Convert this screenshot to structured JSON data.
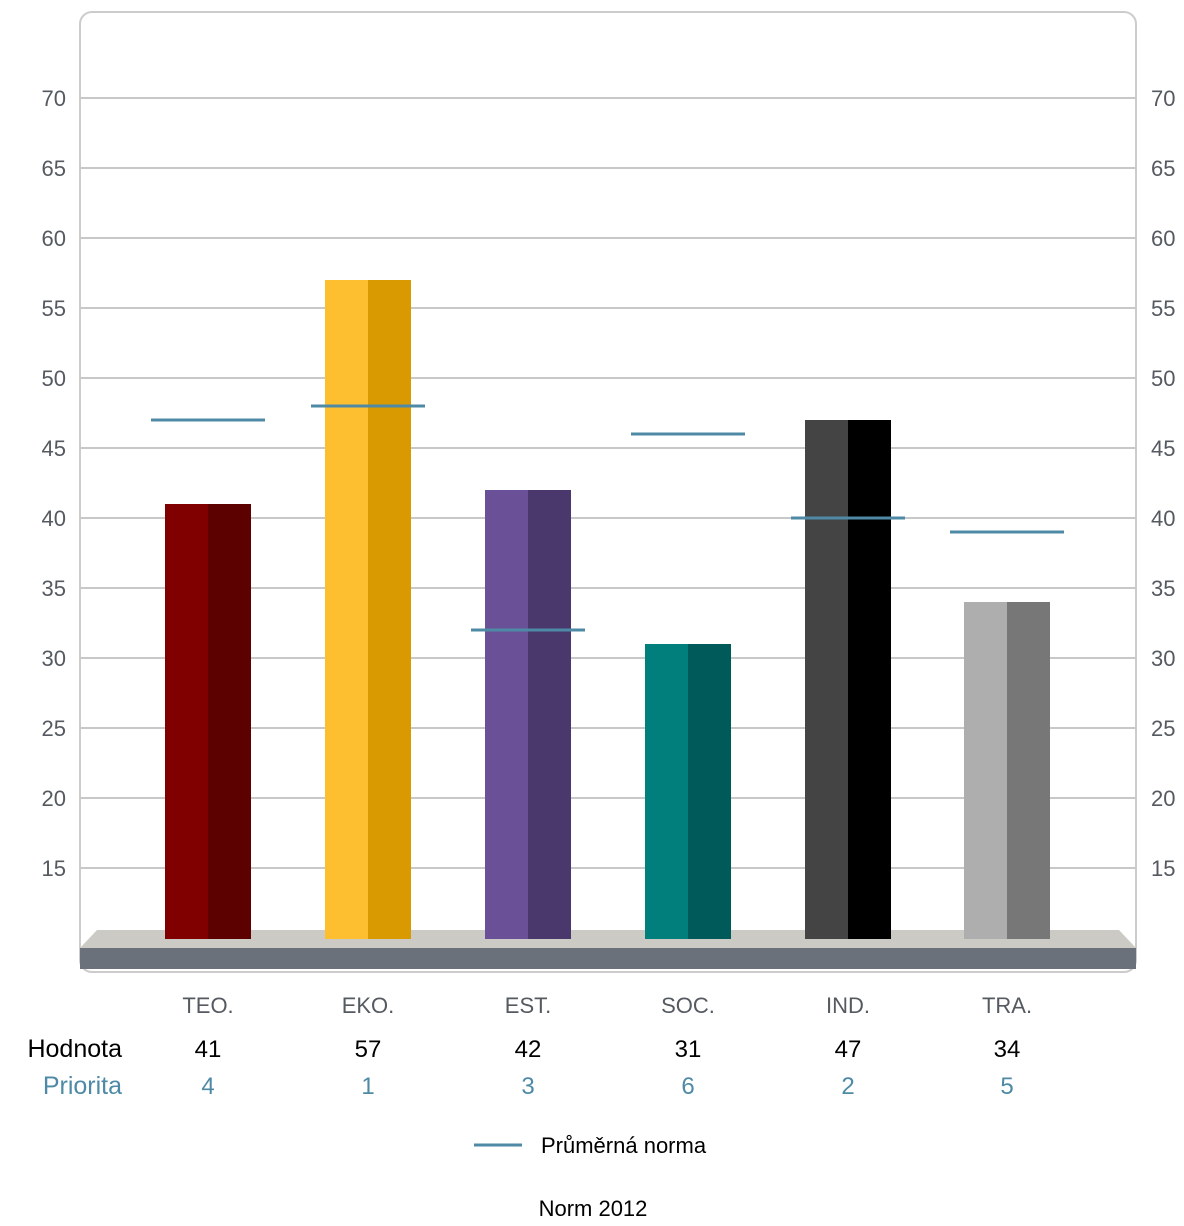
{
  "chart_data": {
    "type": "bar",
    "categories": [
      "TEO.",
      "EKO.",
      "EST.",
      "SOC.",
      "IND.",
      "TRA."
    ],
    "series": [
      {
        "values": [
          41,
          57,
          42,
          31,
          47,
          34
        ]
      },
      {
        "name": "Průměrná norma",
        "values": [
          47,
          48,
          32,
          46,
          40,
          39
        ]
      }
    ],
    "priority": [
      4,
      1,
      3,
      6,
      2,
      5
    ],
    "yticks": [
      15,
      20,
      25,
      30,
      35,
      40,
      45,
      50,
      55,
      60,
      65,
      70
    ],
    "ylim": [
      10,
      70
    ],
    "grid": true,
    "legend_position": "bottom-center",
    "row_labels": {
      "value": "Hodnota",
      "priority": "Priorita"
    },
    "footer": "Norm 2012",
    "colors": {
      "bar_light": [
        "#800000",
        "#fdbf30",
        "#6a5197",
        "#017f7d",
        "#444444",
        "#aeaeae"
      ],
      "bar_dark": [
        "#5c0000",
        "#d89a00",
        "#4a386c",
        "#005a5a",
        "#000000",
        "#777777"
      ],
      "norm": "#4e8aa6",
      "grid": "#c8c8c8",
      "frame": "#cccccc",
      "floor_top": "#cbcac5",
      "floor_front": "#6a717b",
      "priority_text": "#4e8aa6"
    }
  }
}
